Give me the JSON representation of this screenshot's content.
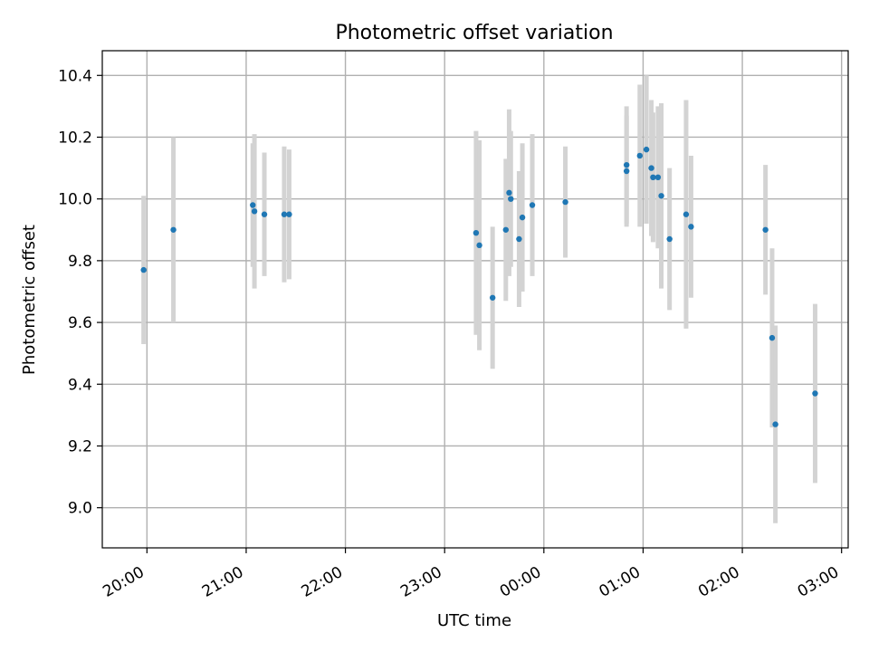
{
  "chart_data": {
    "type": "scatter",
    "title": "Photometric offset variation",
    "xlabel": "UTC time",
    "ylabel": "Photometric offset",
    "x_axis": "time (HH:MM UTC)",
    "xlim": [
      "19:33",
      "03:04"
    ],
    "ylim": [
      8.87,
      10.48
    ],
    "grid": true,
    "colors": {
      "point": "#1f77b4",
      "errorbar": "#d3d3d3"
    },
    "x_ticks": [
      "20:00",
      "21:00",
      "22:00",
      "23:00",
      "00:00",
      "01:00",
      "02:00",
      "03:00"
    ],
    "y_ticks": [
      9.0,
      9.2,
      9.4,
      9.6,
      9.8,
      10.0,
      10.2,
      10.4
    ],
    "y_tick_labels": [
      "9.0",
      "9.2",
      "9.4",
      "9.6",
      "9.8",
      "10.0",
      "10.2",
      "10.4"
    ],
    "points": [
      {
        "x": "19:58",
        "y": 9.77,
        "err": 0.24
      },
      {
        "x": "20:16",
        "y": 9.9,
        "err": 0.3
      },
      {
        "x": "21:04",
        "y": 9.98,
        "err": 0.2
      },
      {
        "x": "21:05",
        "y": 9.96,
        "err": 0.25
      },
      {
        "x": "21:11",
        "y": 9.95,
        "err": 0.2
      },
      {
        "x": "21:23",
        "y": 9.95,
        "err": 0.22
      },
      {
        "x": "21:26",
        "y": 9.95,
        "err": 0.21
      },
      {
        "x": "23:19",
        "y": 9.89,
        "err": 0.33
      },
      {
        "x": "23:21",
        "y": 9.85,
        "err": 0.34
      },
      {
        "x": "23:29",
        "y": 9.68,
        "err": 0.23
      },
      {
        "x": "23:37",
        "y": 9.9,
        "err": 0.23
      },
      {
        "x": "23:39",
        "y": 10.02,
        "err": 0.27
      },
      {
        "x": "23:40",
        "y": 10.0,
        "err": 0.22
      },
      {
        "x": "23:45",
        "y": 9.87,
        "err": 0.22
      },
      {
        "x": "23:47",
        "y": 9.94,
        "err": 0.24
      },
      {
        "x": "23:53",
        "y": 9.98,
        "err": 0.23
      },
      {
        "x": "00:13",
        "y": 9.99,
        "err": 0.18
      },
      {
        "x": "00:50",
        "y": 10.11,
        "err": 0.19
      },
      {
        "x": "00:50",
        "y": 10.09,
        "err": 0.18
      },
      {
        "x": "00:58",
        "y": 10.14,
        "err": 0.23
      },
      {
        "x": "01:02",
        "y": 10.16,
        "err": 0.24
      },
      {
        "x": "01:05",
        "y": 10.1,
        "err": 0.22
      },
      {
        "x": "01:06",
        "y": 10.07,
        "err": 0.21
      },
      {
        "x": "01:09",
        "y": 10.07,
        "err": 0.23
      },
      {
        "x": "01:11",
        "y": 10.01,
        "err": 0.3
      },
      {
        "x": "01:16",
        "y": 9.87,
        "err": 0.23
      },
      {
        "x": "01:26",
        "y": 9.95,
        "err": 0.37
      },
      {
        "x": "01:29",
        "y": 9.91,
        "err": 0.23
      },
      {
        "x": "02:14",
        "y": 9.9,
        "err": 0.21
      },
      {
        "x": "02:18",
        "y": 9.55,
        "err": 0.29
      },
      {
        "x": "02:20",
        "y": 9.27,
        "err": 0.32
      },
      {
        "x": "02:44",
        "y": 9.37,
        "err": 0.29
      }
    ]
  }
}
